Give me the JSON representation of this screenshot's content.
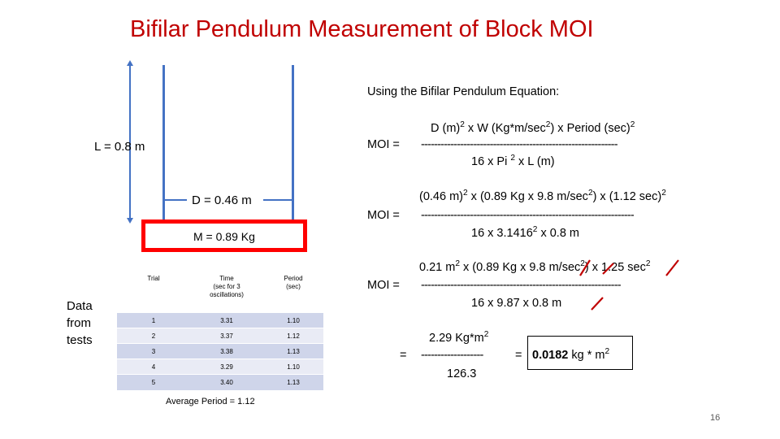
{
  "title": "Bifilar Pendulum Measurement of Block MOI",
  "diagram": {
    "length_label": "L = 0.8 m",
    "distance_label": "D  = 0.46 m",
    "mass_label": "M = 0.89 Kg"
  },
  "data_label": [
    "Data",
    "from",
    "tests"
  ],
  "table": {
    "headers": [
      [
        "Trial"
      ],
      [
        "Time",
        "(sec for 3",
        "oscillations)"
      ],
      [
        "Period",
        "(sec)"
      ]
    ],
    "rows": [
      [
        "1",
        "3.31",
        "1.10"
      ],
      [
        "2",
        "3.37",
        "1.12"
      ],
      [
        "3",
        "3.38",
        "1.13"
      ],
      [
        "4",
        "3.29",
        "1.10"
      ],
      [
        "5",
        "3.40",
        "1.13"
      ]
    ]
  },
  "average_period": "Average Period = 1.12",
  "equation_heading": "Using the Bifilar Pendulum Equation:",
  "equations": {
    "moi_label": "MOI  =",
    "eq1": {
      "num_parts": [
        "D (m)",
        "2",
        "  x  W (Kg*m/sec",
        "2",
        ")  x   Period (sec)",
        "2"
      ],
      "dashes": "------------------------------------------------------------",
      "den_parts": [
        "16   x   Pi ",
        "2",
        "  x    L (m)"
      ]
    },
    "eq2": {
      "num_parts": [
        "(0.46 m)",
        "2",
        "  x  (0.89 Kg x 9.8 m/sec",
        "2",
        ")  x  (1.12 sec)",
        "2"
      ],
      "dashes": "-----------------------------------------------------------------",
      "den_parts": [
        "16   x   3.1416",
        "2",
        "   x    0.8 m"
      ]
    },
    "eq3": {
      "num_parts": [
        "0.21 m",
        "2",
        "  x  (0.89 Kg x 9.8 m/sec",
        "2",
        ")  x   1.25 sec",
        "2"
      ],
      "dashes": "-------------------------------------------------------------",
      "den_parts": [
        "16   x   9.87   x    0.8 m"
      ]
    },
    "eq4": {
      "equals": "=",
      "num_parts": [
        "2.29  Kg*m",
        "2"
      ],
      "dashes": "-------------------",
      "den": "126.3",
      "result_prefix": "=",
      "result_bold": "0.0182",
      "result_parts": [
        "  kg  *  m",
        "2"
      ]
    }
  },
  "page_number": "16",
  "colors": {
    "title": "#c00000",
    "lines": "#4472c4",
    "mass_box": "#ff0000",
    "cancel_marks": "#c00000",
    "table_odd": "#cfd5ea",
    "table_even": "#e9ebf5"
  }
}
